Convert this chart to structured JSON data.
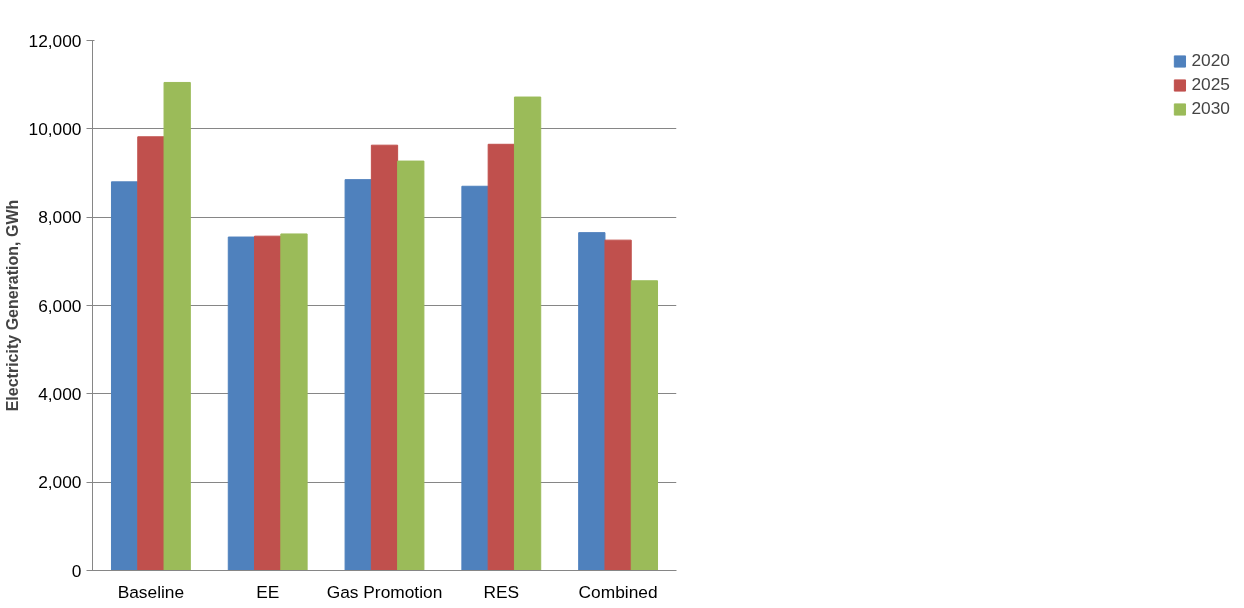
{
  "chart_data": {
    "type": "bar",
    "ylabel": "Electricity Generation, GWh",
    "categories": [
      "Baseline",
      "EE",
      "Gas Promotion",
      "RES",
      "Combined"
    ],
    "series": [
      {
        "name": "2020",
        "color": "#4f81bd",
        "values": [
          8800,
          7550,
          8850,
          8700,
          7650
        ]
      },
      {
        "name": "2025",
        "color": "#c0504d",
        "values": [
          9820,
          7570,
          9630,
          9650,
          7480
        ]
      },
      {
        "name": "2030",
        "color": "#9bbb59",
        "values": [
          11050,
          7620,
          9270,
          10720,
          6560
        ]
      }
    ],
    "ylim": [
      0,
      12000
    ],
    "yticks": [
      {
        "value": 0,
        "label": "0"
      },
      {
        "value": 2000,
        "label": "2,000"
      },
      {
        "value": 4000,
        "label": "4,000"
      },
      {
        "value": 6000,
        "label": "6,000"
      },
      {
        "value": 8000,
        "label": "8,000"
      },
      {
        "value": 10000,
        "label": "10,000"
      },
      {
        "value": 12000,
        "label": "12,000"
      }
    ],
    "grid": "y",
    "legend": "right"
  }
}
